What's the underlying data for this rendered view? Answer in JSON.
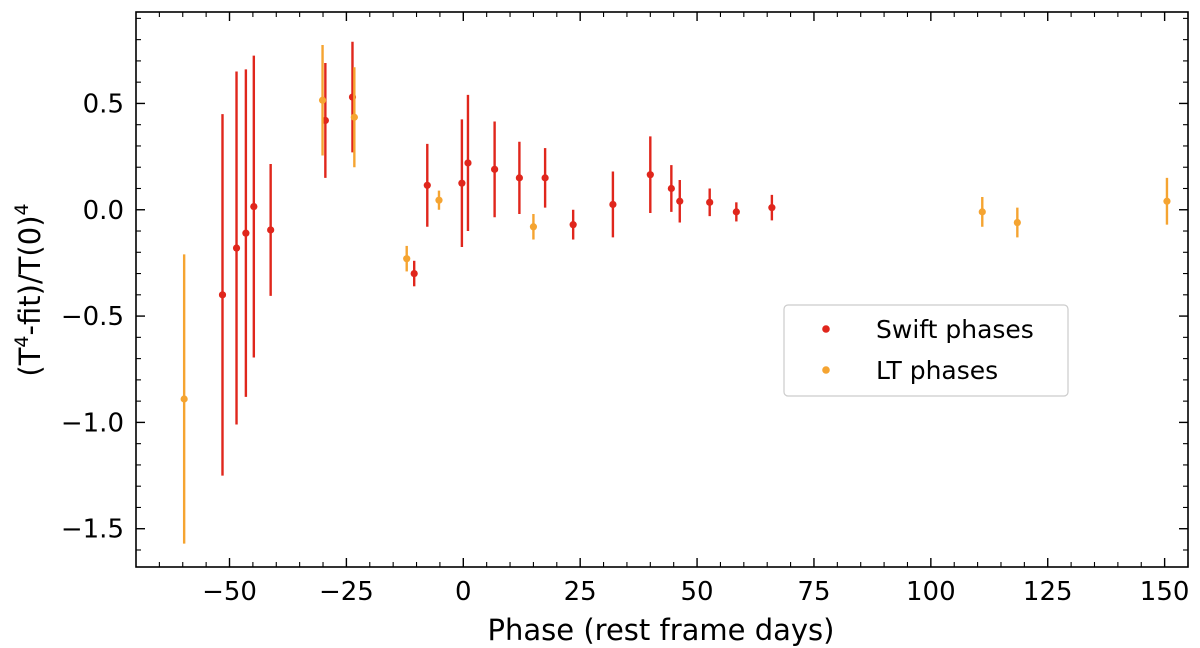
{
  "chart_data": {
    "type": "scatter",
    "xlabel": "Phase (rest frame days)",
    "ylabel_parts": [
      "(T",
      "4",
      "-fit)/T(0)",
      "4"
    ],
    "xlim": [
      -70,
      155
    ],
    "ylim": [
      -1.68,
      0.93
    ],
    "x_ticks": [
      -50,
      -25,
      0,
      25,
      50,
      75,
      100,
      125,
      150
    ],
    "x_tick_labels": [
      "−50",
      "−25",
      "0",
      "25",
      "50",
      "75",
      "100",
      "125",
      "150"
    ],
    "y_ticks": [
      -1.5,
      -1.0,
      -0.5,
      0.0,
      0.5
    ],
    "y_tick_labels": [
      "−1.5",
      "−1.0",
      "−0.5",
      "0.0",
      "0.5"
    ],
    "grid": false,
    "legend_placement": "center-right",
    "series": [
      {
        "name": "Swift phases",
        "color": "#e0261c",
        "points": [
          {
            "x": -51.5,
            "y": -0.4,
            "err": 0.85
          },
          {
            "x": -48.5,
            "y": -0.18,
            "err": 0.83
          },
          {
            "x": -46.5,
            "y": -0.11,
            "err": 0.77
          },
          {
            "x": -44.8,
            "y": 0.015,
            "err": 0.71
          },
          {
            "x": -41.2,
            "y": -0.095,
            "err": 0.31
          },
          {
            "x": -29.5,
            "y": 0.42,
            "err": 0.27
          },
          {
            "x": -23.7,
            "y": 0.53,
            "err": 0.26
          },
          {
            "x": -10.5,
            "y": -0.3,
            "err": 0.06
          },
          {
            "x": -7.7,
            "y": 0.115,
            "err": 0.195
          },
          {
            "x": -0.3,
            "y": 0.125,
            "err": 0.3
          },
          {
            "x": 1.0,
            "y": 0.22,
            "err": 0.32
          },
          {
            "x": 6.7,
            "y": 0.19,
            "err": 0.225
          },
          {
            "x": 12.0,
            "y": 0.15,
            "err": 0.17
          },
          {
            "x": 17.5,
            "y": 0.15,
            "err": 0.14
          },
          {
            "x": 23.5,
            "y": -0.07,
            "err": 0.07
          },
          {
            "x": 32.0,
            "y": 0.025,
            "err": 0.155
          },
          {
            "x": 40.0,
            "y": 0.165,
            "err": 0.18
          },
          {
            "x": 44.5,
            "y": 0.1,
            "err": 0.11
          },
          {
            "x": 46.3,
            "y": 0.04,
            "err": 0.1
          },
          {
            "x": 52.7,
            "y": 0.035,
            "err": 0.065
          },
          {
            "x": 58.4,
            "y": -0.01,
            "err": 0.045
          },
          {
            "x": 66.0,
            "y": 0.01,
            "err": 0.06
          }
        ]
      },
      {
        "name": "LT phases",
        "color": "#f5a431",
        "points": [
          {
            "x": -59.7,
            "y": -0.89,
            "err": 0.68
          },
          {
            "x": -30.1,
            "y": 0.515,
            "err": 0.26
          },
          {
            "x": -23.3,
            "y": 0.435,
            "err": 0.235
          },
          {
            "x": -12.1,
            "y": -0.23,
            "err": 0.06
          },
          {
            "x": -5.2,
            "y": 0.045,
            "err": 0.045
          },
          {
            "x": 15.0,
            "y": -0.08,
            "err": 0.06
          },
          {
            "x": 111.0,
            "y": -0.01,
            "err": 0.07
          },
          {
            "x": 118.5,
            "y": -0.06,
            "err": 0.07
          },
          {
            "x": 150.5,
            "y": 0.04,
            "err": 0.11
          }
        ]
      }
    ]
  }
}
